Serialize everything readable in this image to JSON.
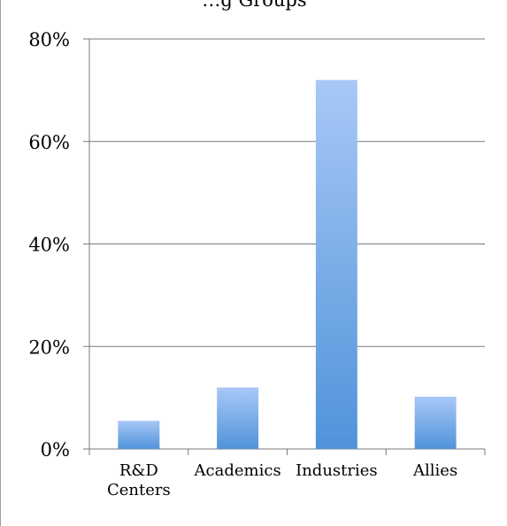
{
  "chart_data": {
    "type": "bar",
    "title": "…g Groups",
    "categories": [
      "R&D Centers",
      "Academics",
      "Industries",
      "Allies"
    ],
    "category_lines": [
      [
        "R&D",
        "Centers"
      ],
      [
        "Academics"
      ],
      [
        "Industries"
      ],
      [
        "Allies"
      ]
    ],
    "values": [
      5.5,
      12,
      72,
      10.2
    ],
    "y_ticks": [
      "0%",
      "20%",
      "40%",
      "60%",
      "80%"
    ],
    "ylim": [
      0,
      80
    ],
    "xlabel": "",
    "ylabel": "",
    "grid": true,
    "legend": "none",
    "colors": {
      "bar_top": "#a8c8f6",
      "bar_bottom": "#5093da",
      "grid": "#7a7a7a",
      "axis": "#7a7a7a"
    }
  }
}
